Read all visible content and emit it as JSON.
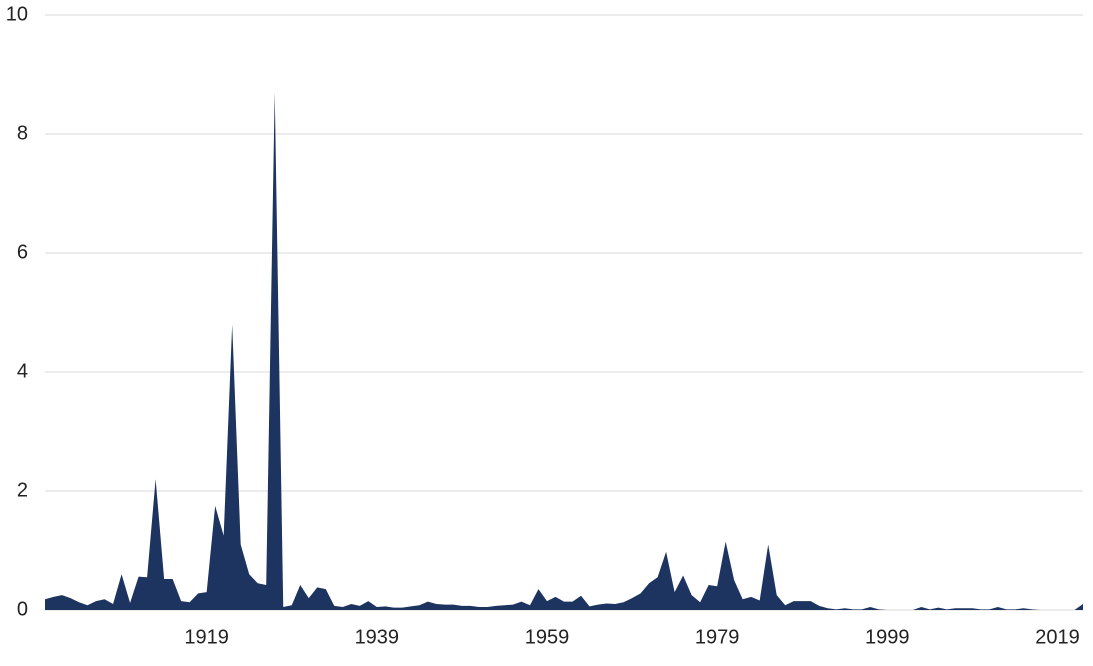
{
  "chart_data": {
    "type": "area",
    "color": "#1d3461",
    "grid": true,
    "xlim": [
      1900,
      2022
    ],
    "xticks": [
      1919,
      1939,
      1959,
      1979,
      1999,
      2019
    ],
    "ylim": [
      0,
      10
    ],
    "yticks": [
      0,
      2,
      4,
      6,
      8,
      10
    ],
    "x": [
      1900,
      1901,
      1902,
      1903,
      1904,
      1905,
      1906,
      1907,
      1908,
      1909,
      1910,
      1911,
      1912,
      1913,
      1914,
      1915,
      1916,
      1917,
      1918,
      1919,
      1920,
      1921,
      1922,
      1923,
      1924,
      1925,
      1926,
      1927,
      1928,
      1929,
      1930,
      1931,
      1932,
      1933,
      1934,
      1935,
      1936,
      1937,
      1938,
      1939,
      1940,
      1941,
      1942,
      1943,
      1944,
      1945,
      1946,
      1947,
      1948,
      1949,
      1950,
      1951,
      1952,
      1953,
      1954,
      1955,
      1956,
      1957,
      1958,
      1959,
      1960,
      1961,
      1962,
      1963,
      1964,
      1965,
      1966,
      1967,
      1968,
      1969,
      1970,
      1971,
      1972,
      1973,
      1974,
      1975,
      1976,
      1977,
      1978,
      1979,
      1980,
      1981,
      1982,
      1983,
      1984,
      1985,
      1986,
      1987,
      1988,
      1989,
      1990,
      1991,
      1992,
      1993,
      1994,
      1995,
      1996,
      1997,
      1998,
      1999,
      2000,
      2001,
      2002,
      2003,
      2004,
      2005,
      2006,
      2007,
      2008,
      2009,
      2010,
      2011,
      2012,
      2013,
      2014,
      2015,
      2016,
      2017,
      2018,
      2019,
      2020,
      2021,
      2022
    ],
    "values": [
      0.18,
      0.22,
      0.25,
      0.2,
      0.13,
      0.08,
      0.15,
      0.18,
      0.1,
      0.6,
      0.12,
      0.56,
      0.55,
      2.2,
      0.52,
      0.52,
      0.15,
      0.13,
      0.28,
      0.3,
      1.75,
      1.25,
      4.8,
      1.1,
      0.6,
      0.45,
      0.42,
      8.7,
      0.05,
      0.08,
      0.42,
      0.2,
      0.38,
      0.35,
      0.07,
      0.05,
      0.1,
      0.07,
      0.15,
      0.05,
      0.06,
      0.04,
      0.04,
      0.06,
      0.08,
      0.14,
      0.1,
      0.09,
      0.09,
      0.07,
      0.07,
      0.05,
      0.05,
      0.07,
      0.08,
      0.09,
      0.14,
      0.08,
      0.35,
      0.15,
      0.22,
      0.14,
      0.14,
      0.24,
      0.06,
      0.09,
      0.11,
      0.1,
      0.13,
      0.2,
      0.28,
      0.45,
      0.55,
      0.98,
      0.3,
      0.58,
      0.25,
      0.13,
      0.42,
      0.4,
      1.15,
      0.5,
      0.18,
      0.22,
      0.16,
      1.1,
      0.25,
      0.08,
      0.15,
      0.15,
      0.15,
      0.07,
      0.03,
      0.01,
      0.03,
      0.01,
      0.01,
      0.05,
      0.01,
      0,
      0,
      0,
      0,
      0.05,
      0.01,
      0.04,
      0.01,
      0.03,
      0.03,
      0.03,
      0.01,
      0.01,
      0.05,
      0.01,
      0.01,
      0.03,
      0.01,
      0,
      0,
      0,
      0,
      0,
      0.1
    ]
  }
}
